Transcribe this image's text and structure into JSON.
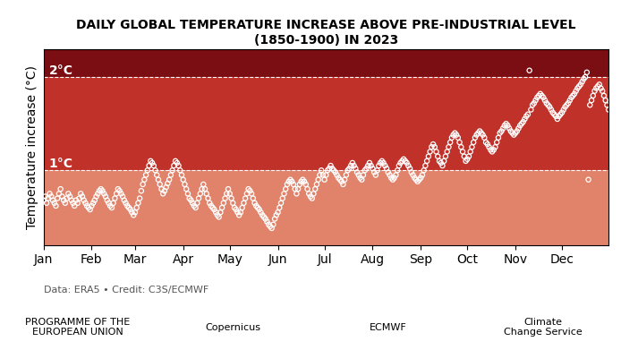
{
  "chart_data": {
    "type": "scatter",
    "title": "DAILY GLOBAL TEMPERATURE INCREASE ABOVE PRE-INDUSTRIAL LEVEL (1850-1900) IN 2023",
    "y_label": "Temperature increase (°C)",
    "annotations": [
      "Data: ERA5 • Credit: C3S/ECMWF",
      "PROGRAMME OF THE\nEUROPEAN UNION",
      "Copernicus",
      "ECMWF",
      "Climate\nChange Service"
    ],
    "xlim": [
      1,
      365
    ],
    "ylim": [
      0.2,
      2.3
    ],
    "xticks": [
      {
        "value": 1,
        "label": "Jan"
      },
      {
        "value": 32,
        "label": "Feb"
      },
      {
        "value": 60,
        "label": "Mar"
      },
      {
        "value": 91,
        "label": "Apr"
      },
      {
        "value": 121,
        "label": "May"
      },
      {
        "value": 152,
        "label": "Jun"
      },
      {
        "value": 182,
        "label": "Jul"
      },
      {
        "value": 213,
        "label": "Aug"
      },
      {
        "value": 244,
        "label": "Sep"
      },
      {
        "value": 274,
        "label": "Oct"
      },
      {
        "value": 305,
        "label": "Nov"
      },
      {
        "value": 335,
        "label": "Dec"
      }
    ],
    "tick_labels": "x",
    "grid": false,
    "bands": [
      {
        "from": 0.2,
        "to": 1.0,
        "color": "#e0836a"
      },
      {
        "from": 1.0,
        "to": 2.0,
        "color": "#c0312a"
      },
      {
        "from": 2.0,
        "to": 2.3,
        "color": "#7a0e12"
      }
    ],
    "thresholds": [
      {
        "value": 1.0,
        "label": "1°C"
      },
      {
        "value": 2.0,
        "label": "2°C"
      }
    ],
    "color": "#ffffff",
    "marker": "o",
    "x": [
      1,
      2,
      3,
      4,
      5,
      6,
      7,
      8,
      9,
      10,
      11,
      12,
      13,
      14,
      15,
      16,
      17,
      18,
      19,
      20,
      21,
      22,
      23,
      24,
      25,
      26,
      27,
      28,
      29,
      30,
      31,
      32,
      33,
      34,
      35,
      36,
      37,
      38,
      39,
      40,
      41,
      42,
      43,
      44,
      45,
      46,
      47,
      48,
      49,
      50,
      51,
      52,
      53,
      54,
      55,
      56,
      57,
      58,
      59,
      60,
      61,
      62,
      63,
      64,
      65,
      66,
      67,
      68,
      69,
      70,
      71,
      72,
      73,
      74,
      75,
      76,
      77,
      78,
      79,
      80,
      81,
      82,
      83,
      84,
      85,
      86,
      87,
      88,
      89,
      90,
      91,
      92,
      93,
      94,
      95,
      96,
      97,
      98,
      99,
      100,
      101,
      102,
      103,
      104,
      105,
      106,
      107,
      108,
      109,
      110,
      111,
      112,
      113,
      114,
      115,
      116,
      117,
      118,
      119,
      120,
      121,
      122,
      123,
      124,
      125,
      126,
      127,
      128,
      129,
      130,
      131,
      132,
      133,
      134,
      135,
      136,
      137,
      138,
      139,
      140,
      141,
      142,
      143,
      144,
      145,
      146,
      147,
      148,
      149,
      150,
      151,
      152,
      153,
      154,
      155,
      156,
      157,
      158,
      159,
      160,
      161,
      162,
      163,
      164,
      165,
      166,
      167,
      168,
      169,
      170,
      171,
      172,
      173,
      174,
      175,
      176,
      177,
      178,
      179,
      180,
      181,
      182,
      183,
      184,
      185,
      186,
      187,
      188,
      189,
      190,
      191,
      192,
      193,
      194,
      195,
      196,
      197,
      198,
      199,
      200,
      201,
      202,
      203,
      204,
      205,
      206,
      207,
      208,
      209,
      210,
      211,
      212,
      213,
      214,
      215,
      216,
      217,
      218,
      219,
      220,
      221,
      222,
      223,
      224,
      225,
      226,
      227,
      228,
      229,
      230,
      231,
      232,
      233,
      234,
      235,
      236,
      237,
      238,
      239,
      240,
      241,
      242,
      243,
      244,
      245,
      246,
      247,
      248,
      249,
      250,
      251,
      252,
      253,
      254,
      255,
      256,
      257,
      258,
      259,
      260,
      261,
      262,
      263,
      264,
      265,
      266,
      267,
      268,
      269,
      270,
      271,
      272,
      273,
      274,
      275,
      276,
      277,
      278,
      279,
      280,
      281,
      282,
      283,
      284,
      285,
      286,
      287,
      288,
      289,
      290,
      291,
      292,
      293,
      294,
      295,
      296,
      297,
      298,
      299,
      300,
      301,
      302,
      303,
      304,
      305,
      306,
      307,
      308,
      309,
      310,
      311,
      312,
      313,
      314,
      315,
      316,
      317,
      318,
      319,
      320,
      321,
      322,
      323,
      324,
      325,
      326,
      327,
      328,
      329,
      330,
      331,
      332,
      333,
      334,
      335,
      336,
      337,
      338,
      339,
      340,
      341,
      342,
      343,
      344,
      345,
      346,
      347,
      348,
      349,
      350,
      351,
      352,
      353,
      354,
      355,
      356,
      357,
      358,
      359,
      360,
      361,
      362,
      363,
      364,
      365
    ],
    "values": [
      0.68,
      0.72,
      0.65,
      0.7,
      0.75,
      0.72,
      0.68,
      0.65,
      0.62,
      0.7,
      0.75,
      0.8,
      0.72,
      0.68,
      0.65,
      0.7,
      0.75,
      0.72,
      0.68,
      0.65,
      0.62,
      0.68,
      0.65,
      0.7,
      0.75,
      0.72,
      0.68,
      0.65,
      0.62,
      0.6,
      0.58,
      0.62,
      0.65,
      0.68,
      0.72,
      0.75,
      0.78,
      0.8,
      0.78,
      0.75,
      0.72,
      0.68,
      0.65,
      0.62,
      0.6,
      0.65,
      0.7,
      0.75,
      0.8,
      0.78,
      0.75,
      0.72,
      0.68,
      0.65,
      0.62,
      0.6,
      0.58,
      0.55,
      0.52,
      0.55,
      0.6,
      0.65,
      0.7,
      0.78,
      0.85,
      0.9,
      0.95,
      1.0,
      1.05,
      1.1,
      1.08,
      1.05,
      1.0,
      0.95,
      0.9,
      0.85,
      0.8,
      0.75,
      0.78,
      0.82,
      0.86,
      0.9,
      0.95,
      1.0,
      1.05,
      1.1,
      1.08,
      1.05,
      1.0,
      0.95,
      0.9,
      0.85,
      0.8,
      0.75,
      0.7,
      0.68,
      0.65,
      0.62,
      0.6,
      0.65,
      0.7,
      0.75,
      0.8,
      0.85,
      0.8,
      0.75,
      0.7,
      0.65,
      0.62,
      0.6,
      0.58,
      0.55,
      0.52,
      0.5,
      0.55,
      0.6,
      0.65,
      0.7,
      0.75,
      0.8,
      0.75,
      0.7,
      0.65,
      0.6,
      0.58,
      0.55,
      0.52,
      0.55,
      0.6,
      0.65,
      0.7,
      0.75,
      0.8,
      0.78,
      0.75,
      0.7,
      0.65,
      0.62,
      0.6,
      0.58,
      0.55,
      0.52,
      0.5,
      0.48,
      0.45,
      0.42,
      0.4,
      0.38,
      0.42,
      0.48,
      0.52,
      0.55,
      0.6,
      0.65,
      0.7,
      0.75,
      0.8,
      0.85,
      0.88,
      0.9,
      0.88,
      0.85,
      0.8,
      0.75,
      0.8,
      0.85,
      0.88,
      0.9,
      0.88,
      0.85,
      0.8,
      0.75,
      0.72,
      0.7,
      0.75,
      0.8,
      0.85,
      0.9,
      0.95,
      1.0,
      0.95,
      0.9,
      0.95,
      1.0,
      1.02,
      1.05,
      1.02,
      1.0,
      0.98,
      0.95,
      0.92,
      0.9,
      0.88,
      0.85,
      0.9,
      0.95,
      1.0,
      1.02,
      1.05,
      1.08,
      1.05,
      1.02,
      0.98,
      0.95,
      0.92,
      0.9,
      0.95,
      1.0,
      1.02,
      1.05,
      1.08,
      1.05,
      1.02,
      0.98,
      0.95,
      1.0,
      1.05,
      1.08,
      1.1,
      1.08,
      1.05,
      1.02,
      0.98,
      0.95,
      0.92,
      0.9,
      0.92,
      0.95,
      1.0,
      1.05,
      1.08,
      1.1,
      1.12,
      1.1,
      1.08,
      1.05,
      1.02,
      0.98,
      0.95,
      0.92,
      0.9,
      0.88,
      0.9,
      0.92,
      0.95,
      1.0,
      1.05,
      1.1,
      1.15,
      1.2,
      1.25,
      1.28,
      1.25,
      1.2,
      1.15,
      1.1,
      1.08,
      1.05,
      1.1,
      1.15,
      1.2,
      1.25,
      1.3,
      1.35,
      1.38,
      1.4,
      1.38,
      1.35,
      1.3,
      1.25,
      1.2,
      1.15,
      1.1,
      1.12,
      1.15,
      1.2,
      1.25,
      1.3,
      1.35,
      1.38,
      1.4,
      1.42,
      1.4,
      1.38,
      1.35,
      1.3,
      1.28,
      1.25,
      1.22,
      1.2,
      1.22,
      1.25,
      1.3,
      1.35,
      1.4,
      1.42,
      1.45,
      1.48,
      1.5,
      1.48,
      1.45,
      1.42,
      1.4,
      1.38,
      1.4,
      1.42,
      1.45,
      1.48,
      1.5,
      1.52,
      1.55,
      1.58,
      1.6,
      2.07,
      1.65,
      1.7,
      1.72,
      1.75,
      1.78,
      1.8,
      1.82,
      1.8,
      1.78,
      1.75,
      1.72,
      1.7,
      1.68,
      1.65,
      1.62,
      1.6,
      1.58,
      1.55,
      1.58,
      1.6,
      1.62,
      1.65,
      1.68,
      1.7,
      1.72,
      1.75,
      1.78,
      1.8,
      1.82,
      1.85,
      1.88,
      1.9,
      1.92,
      1.95,
      1.98,
      2.0,
      2.05,
      0.9,
      1.7,
      1.75,
      1.8,
      1.85,
      1.88,
      1.9,
      1.92,
      1.88,
      1.85,
      1.8,
      1.75,
      1.7,
      1.65
    ]
  }
}
